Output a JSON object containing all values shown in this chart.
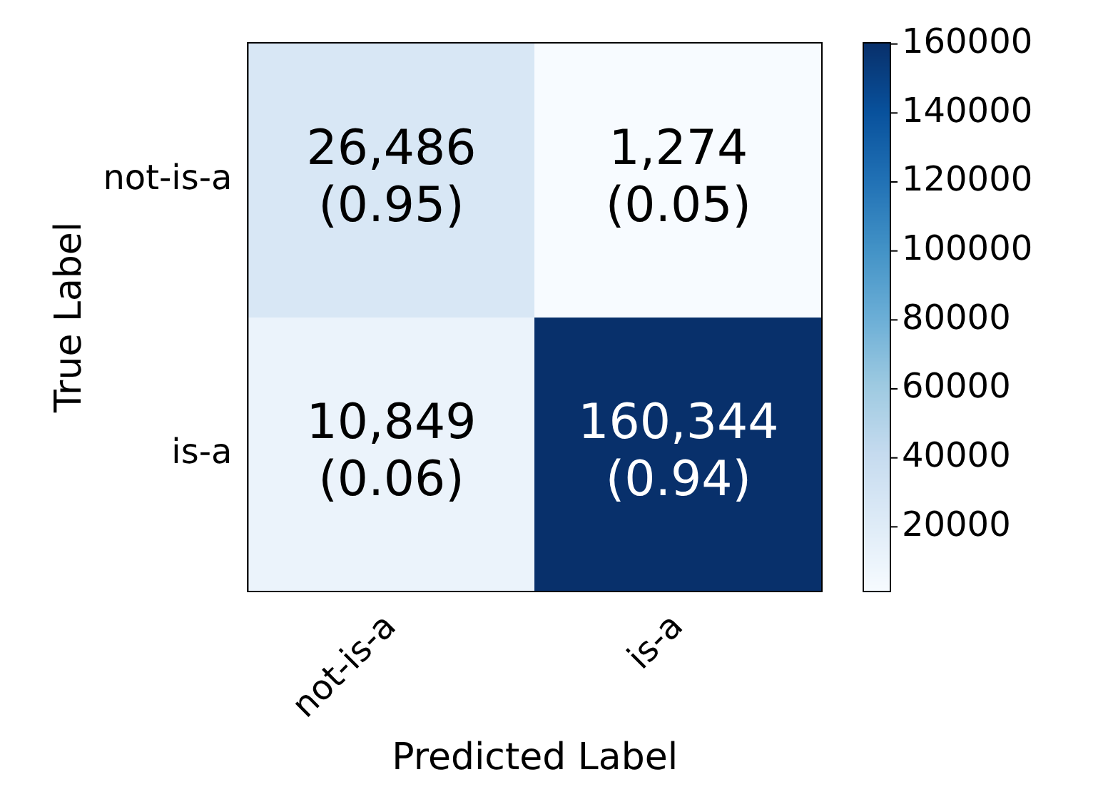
{
  "chart_data": {
    "type": "heatmap",
    "xlabel": "Predicted Label",
    "ylabel": "True Label",
    "categories": [
      "not-is-a",
      "is-a"
    ],
    "y_categories": [
      "not-is-a",
      "is-a"
    ],
    "cells": [
      [
        26486,
        1274
      ],
      [
        10849,
        160344
      ]
    ],
    "cell_labels": [
      [
        "26,486\n(0.95)",
        "1,274\n(0.05)"
      ],
      [
        "10,849\n(0.06)",
        "160,344\n(0.94)"
      ]
    ],
    "clim": [
      1274,
      160344
    ],
    "cticks": [
      20000,
      40000,
      60000,
      80000,
      100000,
      120000,
      140000,
      160000
    ]
  }
}
